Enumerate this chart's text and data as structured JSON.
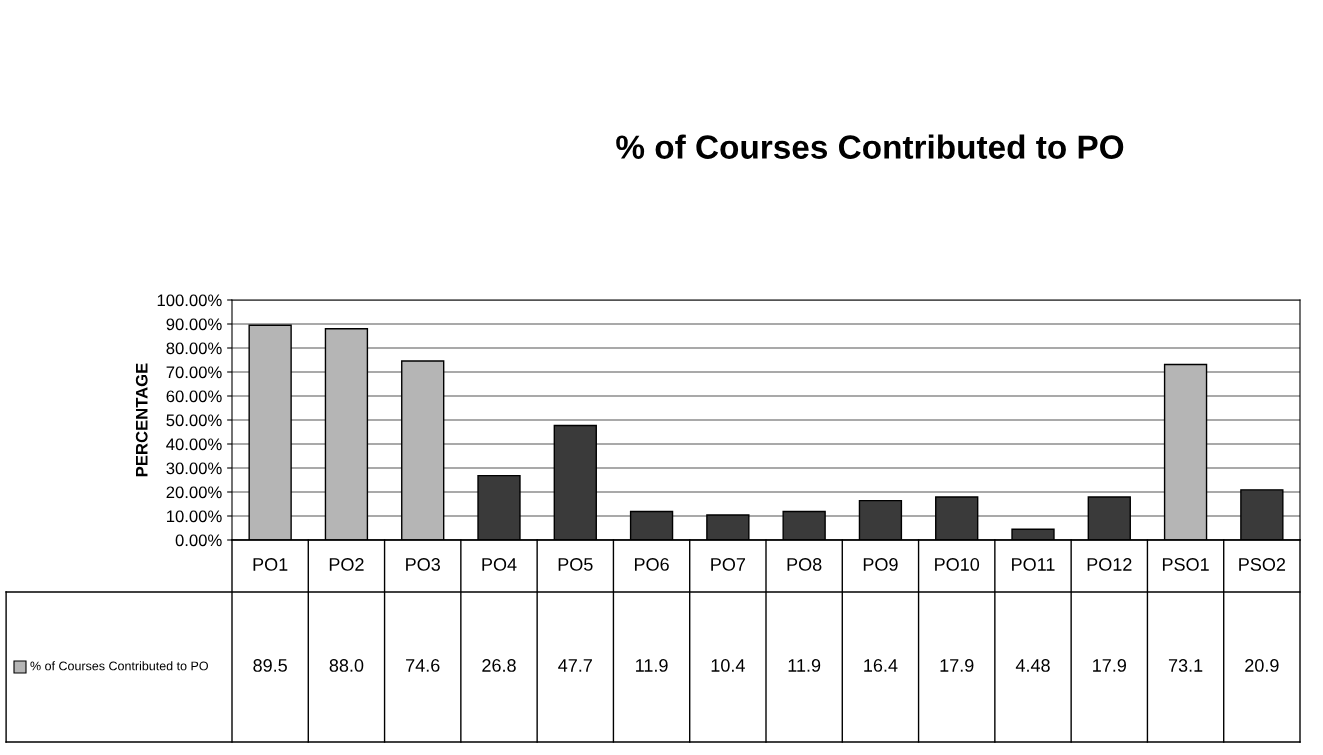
{
  "chart_data": {
    "type": "bar",
    "title": "% of Courses Contributed to PO",
    "ylabel": "PERCENTAGE",
    "categories": [
      "PO1",
      "PO2",
      "PO3",
      "PO4",
      "PO5",
      "PO6",
      "PO7",
      "PO8",
      "PO9",
      "PO10",
      "PO11",
      "PO12",
      "PSO1",
      "PSO2"
    ],
    "series": [
      {
        "name": "% of Courses Contributed to PO",
        "color": "#b5b5b5",
        "values": [
          89.5,
          88.0,
          74.6,
          26.8,
          47.7,
          11.9,
          10.4,
          11.9,
          16.4,
          17.9,
          4.48,
          17.9,
          73.1,
          20.9
        ],
        "colors": [
          "#b5b5b5",
          "#b5b5b5",
          "#b5b5b5",
          "#3a3a3a",
          "#3a3a3a",
          "#3a3a3a",
          "#3a3a3a",
          "#3a3a3a",
          "#3a3a3a",
          "#3a3a3a",
          "#3a3a3a",
          "#3a3a3a",
          "#b5b5b5",
          "#3a3a3a"
        ],
        "value_labels": [
          "89.5",
          "88.0",
          "74.6",
          "26.8",
          "47.7",
          "11.9",
          "10.4",
          "11.9",
          "16.4",
          "17.9",
          "4.48",
          "17.9",
          "73.1",
          "20.9"
        ]
      }
    ],
    "ylim": [
      0,
      100
    ],
    "yticks": [
      {
        "value": 0,
        "label": "0.00%"
      },
      {
        "value": 10,
        "label": "10.00%"
      },
      {
        "value": 20,
        "label": "20.00%"
      },
      {
        "value": 30,
        "label": "30.00%"
      },
      {
        "value": 40,
        "label": "40.00%"
      },
      {
        "value": 50,
        "label": "50.00%"
      },
      {
        "value": 60,
        "label": "60.00%"
      },
      {
        "value": 70,
        "label": "70.00%"
      },
      {
        "value": 80,
        "label": "80.00%"
      },
      {
        "value": 90,
        "label": "90.00%"
      },
      {
        "value": 100,
        "label": "100.00%"
      }
    ],
    "grid": "y",
    "legend": "bottom"
  }
}
